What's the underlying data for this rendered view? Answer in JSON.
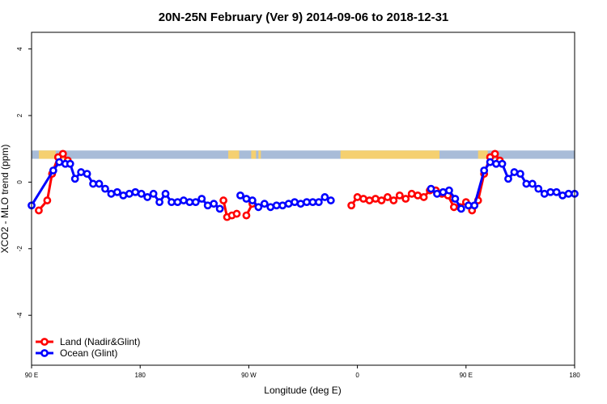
{
  "chart_data": {
    "type": "line",
    "title": "20N-25N February (Ver 9)   2014-09-06 to 2018-12-31",
    "xlabel": "Longitude (deg E)",
    "ylabel": "XCO2 - MLO trend (ppm)",
    "xlim": [
      90,
      540
    ],
    "ylim": [
      -5.5,
      4.5
    ],
    "x_ticks": [
      {
        "value": 90,
        "label": "90 E"
      },
      {
        "value": 180,
        "label": "180"
      },
      {
        "value": 270,
        "label": "90 W"
      },
      {
        "value": 360,
        "label": "0"
      },
      {
        "value": 450,
        "label": "90 E"
      },
      {
        "value": 540,
        "label": "180"
      }
    ],
    "y_ticks": [
      {
        "value": -4,
        "label": "-4"
      },
      {
        "value": -2,
        "label": "-2"
      },
      {
        "value": 0,
        "label": "0"
      },
      {
        "value": 2,
        "label": "2"
      },
      {
        "value": 4,
        "label": "4"
      }
    ],
    "land_ocean_band": {
      "y_range": [
        0.7,
        0.95
      ],
      "ocean_color": "#a8bcd8",
      "land_color": "#f5d070",
      "land_segments": [
        [
          96,
          110
        ],
        [
          115,
          118
        ],
        [
          253,
          262
        ],
        [
          272,
          276
        ],
        [
          278,
          280
        ],
        [
          346,
          428
        ],
        [
          460,
          468
        ]
      ]
    },
    "legend": {
      "position": "bottom-left"
    },
    "series": [
      {
        "name": "Land (Nadir&Glint)",
        "color": "#ff0000",
        "segments": [
          [
            [
              96,
              -0.85
            ],
            [
              103,
              -0.55
            ],
            [
              107,
              0.25
            ],
            [
              112,
              0.75
            ],
            [
              116,
              0.85
            ],
            [
              120,
              0.65
            ]
          ],
          [
            [
              249,
              -0.55
            ],
            [
              252,
              -1.05
            ],
            [
              256,
              -1.0
            ],
            [
              260,
              -0.95
            ]
          ],
          [
            [
              268,
              -1.0
            ],
            [
              273,
              -0.65
            ]
          ],
          [
            [
              355,
              -0.7
            ],
            [
              360,
              -0.45
            ],
            [
              365,
              -0.5
            ],
            [
              370,
              -0.55
            ],
            [
              375,
              -0.5
            ],
            [
              380,
              -0.55
            ],
            [
              385,
              -0.45
            ],
            [
              390,
              -0.55
            ],
            [
              395,
              -0.4
            ],
            [
              400,
              -0.5
            ],
            [
              405,
              -0.35
            ],
            [
              410,
              -0.4
            ],
            [
              415,
              -0.45
            ],
            [
              420,
              -0.25
            ],
            [
              425,
              -0.25
            ],
            [
              430,
              -0.35
            ],
            [
              435,
              -0.4
            ],
            [
              440,
              -0.75
            ],
            [
              445,
              -0.75
            ],
            [
              450,
              -0.6
            ],
            [
              455,
              -0.85
            ],
            [
              460,
              -0.55
            ],
            [
              465,
              0.25
            ],
            [
              470,
              0.75
            ],
            [
              474,
              0.85
            ],
            [
              478,
              0.65
            ]
          ]
        ]
      },
      {
        "name": "Ocean (Glint)",
        "color": "#0000ff",
        "segments": [
          [
            [
              90,
              -0.7
            ],
            [
              108,
              0.35
            ],
            [
              113,
              0.6
            ],
            [
              118,
              0.55
            ],
            [
              122,
              0.55
            ],
            [
              126,
              0.1
            ],
            [
              131,
              0.3
            ],
            [
              136,
              0.25
            ],
            [
              141,
              -0.05
            ],
            [
              146,
              -0.05
            ],
            [
              151,
              -0.2
            ],
            [
              156,
              -0.35
            ],
            [
              161,
              -0.3
            ],
            [
              166,
              -0.4
            ],
            [
              171,
              -0.35
            ],
            [
              176,
              -0.3
            ],
            [
              181,
              -0.35
            ],
            [
              186,
              -0.45
            ],
            [
              191,
              -0.35
            ],
            [
              196,
              -0.6
            ],
            [
              201,
              -0.35
            ],
            [
              206,
              -0.6
            ],
            [
              211,
              -0.6
            ],
            [
              216,
              -0.55
            ],
            [
              221,
              -0.6
            ],
            [
              226,
              -0.6
            ],
            [
              231,
              -0.5
            ],
            [
              236,
              -0.7
            ],
            [
              241,
              -0.65
            ],
            [
              246,
              -0.8
            ]
          ],
          [
            [
              263,
              -0.4
            ],
            [
              268,
              -0.5
            ],
            [
              273,
              -0.55
            ],
            [
              278,
              -0.75
            ],
            [
              283,
              -0.65
            ],
            [
              288,
              -0.75
            ],
            [
              293,
              -0.7
            ],
            [
              298,
              -0.7
            ],
            [
              303,
              -0.65
            ],
            [
              308,
              -0.6
            ],
            [
              313,
              -0.65
            ],
            [
              318,
              -0.6
            ],
            [
              323,
              -0.6
            ],
            [
              328,
              -0.6
            ],
            [
              333,
              -0.45
            ],
            [
              338,
              -0.55
            ]
          ],
          [
            [
              421,
              -0.2
            ],
            [
              426,
              -0.35
            ],
            [
              431,
              -0.3
            ],
            [
              436,
              -0.25
            ],
            [
              441,
              -0.5
            ],
            [
              446,
              -0.8
            ]
          ],
          [
            [
              452,
              -0.7
            ],
            [
              457,
              -0.7
            ],
            [
              465,
              0.35
            ],
            [
              470,
              0.6
            ],
            [
              475,
              0.55
            ],
            [
              480,
              0.55
            ],
            [
              485,
              0.1
            ],
            [
              490,
              0.3
            ],
            [
              495,
              0.25
            ],
            [
              500,
              -0.05
            ],
            [
              505,
              -0.05
            ],
            [
              510,
              -0.2
            ],
            [
              515,
              -0.35
            ],
            [
              520,
              -0.3
            ],
            [
              525,
              -0.3
            ],
            [
              530,
              -0.4
            ],
            [
              535,
              -0.35
            ],
            [
              540,
              -0.35
            ]
          ]
        ]
      }
    ]
  }
}
